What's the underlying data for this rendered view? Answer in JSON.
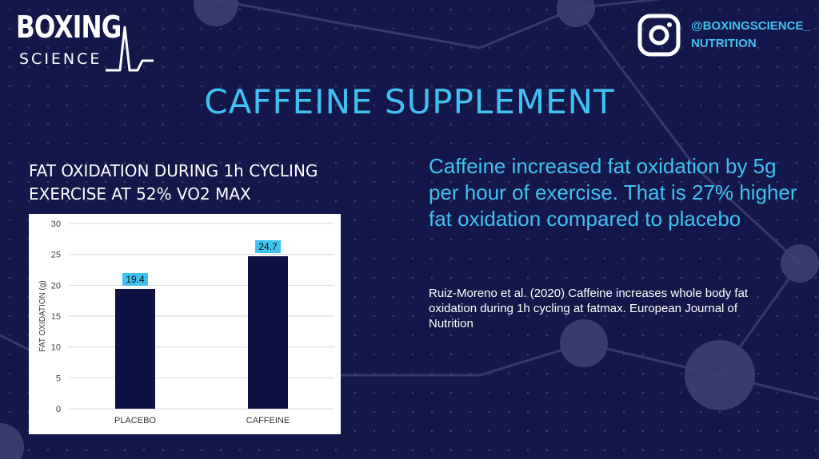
{
  "brand": {
    "logo_top": "BOXING",
    "logo_bottom": "SCIENCE",
    "instagram_handle_line1": "@BOXINGSCIENCE_",
    "instagram_handle_line2": "NUTRITION",
    "icon": "instagram-icon"
  },
  "heading": "CAFFEINE SUPPLEMENT",
  "chart_heading": {
    "line1": "FAT OXIDATION DURING 1h CYCLING",
    "line2": "EXERCISE AT 52% VO2 MAX"
  },
  "statement": "Caffeine increased fat oxidation by 5g per hour of exercise. That is 27% higher fat oxidation compared to placebo",
  "citation": "Ruiz-Moreno et al. (2020) Caffeine increases whole body fat oxidation during 1h cycling at fatmax. European Journal of Nutrition",
  "colors": {
    "background": "#14174a",
    "accent": "#3fc2f0",
    "bar": "#0f1145",
    "label_bg": "#3fc2f0"
  },
  "chart_data": {
    "type": "bar",
    "categories": [
      "PLACEBO",
      "CAFFEINE"
    ],
    "values": [
      19.4,
      24.7
    ],
    "data_labels": [
      "19.4",
      "24.7"
    ],
    "title": "",
    "xlabel": "",
    "ylabel": "FAT OXIDATION (g)",
    "ylim": [
      0,
      30
    ],
    "yticks": [
      0,
      5,
      10,
      15,
      20,
      25,
      30
    ],
    "grid": true,
    "legend": "none"
  }
}
